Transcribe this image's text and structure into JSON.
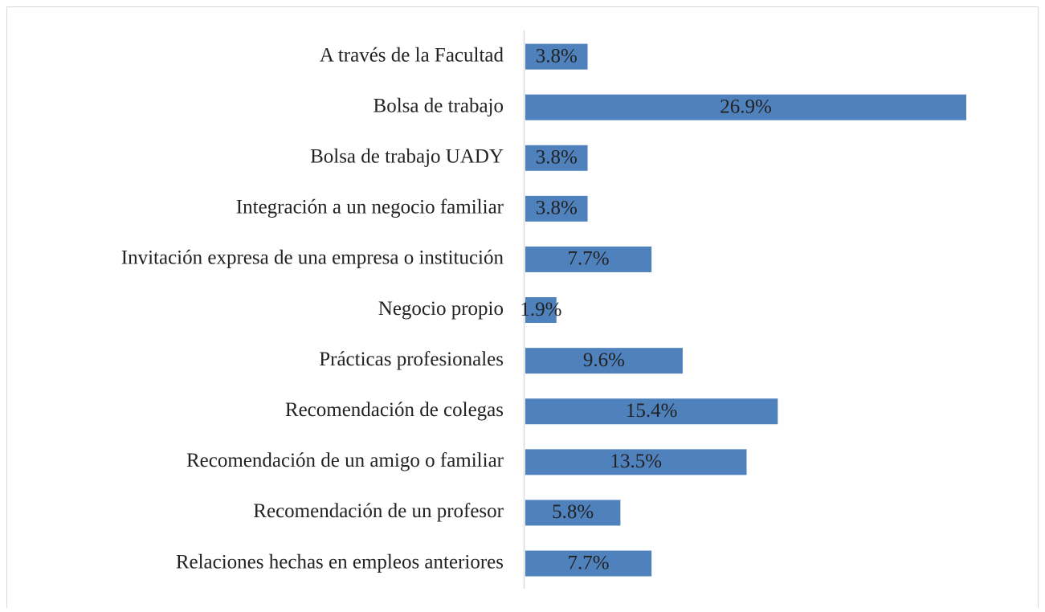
{
  "chart_data": {
    "type": "bar",
    "orientation": "horizontal",
    "categories": [
      "A través de la Facultad",
      "Bolsa de trabajo",
      "Bolsa de trabajo UADY",
      "Integración a un negocio familiar",
      "Invitación expresa de una empresa o institución",
      "Negocio propio",
      "Prácticas profesionales",
      "Recomendación de colegas",
      "Recomendación de un amigo o familiar",
      "Recomendación de un profesor",
      "Relaciones hechas en empleos anteriores"
    ],
    "values": [
      3.8,
      26.9,
      3.8,
      3.8,
      7.7,
      1.9,
      9.6,
      15.4,
      13.5,
      5.8,
      7.7
    ],
    "value_labels": [
      "3.8%",
      "26.9%",
      "3.8%",
      "3.8%",
      "7.7%",
      "1.9%",
      "9.6%",
      "15.4%",
      "13.5%",
      "5.8%",
      "7.7%"
    ],
    "color": "#4f81bd"
  }
}
